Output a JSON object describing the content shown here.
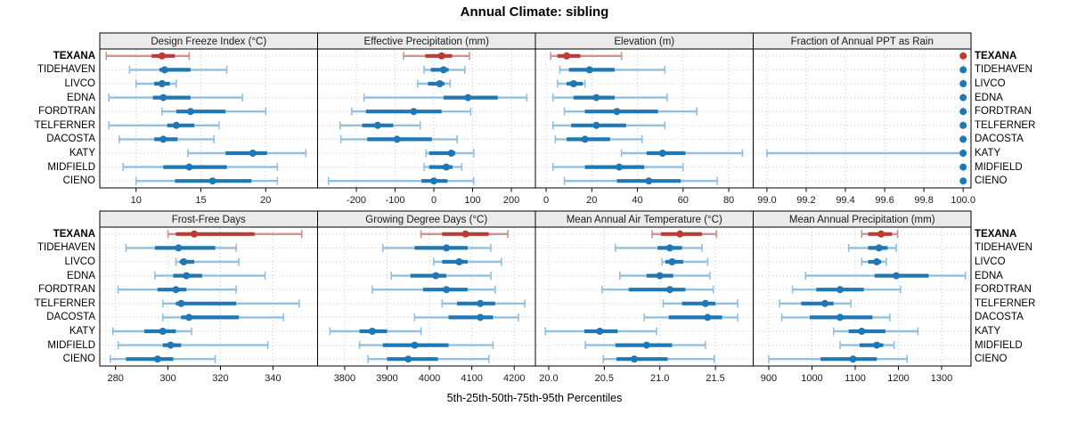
{
  "title": "Annual Climate: sibling",
  "caption": "5th-25th-50th-75th-95th Percentiles",
  "locations": [
    "TEXANA",
    "TIDEHAVEN",
    "LIVCO",
    "EDNA",
    "FORDTRAN",
    "TELFERNER",
    "DACOSTA",
    "KATY",
    "MIDFIELD",
    "CIENO"
  ],
  "highlight_location": "TEXANA",
  "percentile_levels": [
    5,
    25,
    50,
    75,
    95
  ],
  "colors": {
    "normal": "#1f77b4",
    "normal_light": "#92c0de",
    "highlight": "#be3a34",
    "highlight_light": "#d4918c",
    "grid": "#c9c9c9",
    "header_bg": "#ebebeb",
    "border": "#000000",
    "text": "#1a1a1a"
  },
  "chart_data": [
    {
      "type": "percentile_dot_whisker",
      "title": "Design Freeze Index (°C)",
      "xlim": [
        7.2,
        24.0
      ],
      "ticks": [
        10,
        15,
        20
      ],
      "tick_labels": [
        "10",
        "15",
        "20"
      ],
      "values": [
        [
          7.7,
          11.2,
          12.0,
          13.0,
          14.1
        ],
        [
          9.5,
          11.8,
          12.2,
          14.2,
          17.0
        ],
        [
          10.0,
          11.4,
          12.0,
          12.6,
          13.1
        ],
        [
          7.9,
          11.3,
          12.1,
          14.2,
          18.2
        ],
        [
          12.0,
          13.1,
          14.2,
          16.9,
          20.0
        ],
        [
          7.9,
          12.4,
          13.1,
          14.5,
          16.4
        ],
        [
          8.7,
          11.4,
          12.1,
          13.2,
          16.0
        ],
        [
          14.0,
          16.9,
          19.0,
          20.1,
          23.1
        ],
        [
          9.0,
          12.1,
          14.1,
          17.0,
          20.9
        ],
        [
          10.0,
          13.0,
          15.9,
          18.9,
          20.9
        ]
      ]
    },
    {
      "type": "percentile_dot_whisker",
      "title": "Effective Precipitation (mm)",
      "xlim": [
        -300,
        262
      ],
      "ticks": [
        -200,
        -100,
        0,
        100,
        200
      ],
      "tick_labels": [
        "-200",
        "-100",
        "0",
        "100",
        "200"
      ],
      "values": [
        [
          -78,
          -22,
          20,
          47,
          92
        ],
        [
          -25,
          -8,
          25,
          38,
          80
        ],
        [
          -42,
          -15,
          15,
          27,
          42
        ],
        [
          -180,
          25,
          88,
          165,
          240
        ],
        [
          -212,
          -175,
          -52,
          20,
          95
        ],
        [
          -242,
          -185,
          -145,
          -105,
          -35
        ],
        [
          -240,
          -172,
          -95,
          -5,
          60
        ],
        [
          -20,
          -12,
          45,
          55,
          103
        ],
        [
          -25,
          -12,
          32,
          48,
          72
        ],
        [
          -272,
          -32,
          0,
          35,
          103
        ]
      ]
    },
    {
      "type": "percentile_dot_whisker",
      "title": "Elevation (m)",
      "xlim": [
        -4.7,
        90.7
      ],
      "ticks": [
        0,
        20,
        40,
        60,
        80
      ],
      "tick_labels": [
        "0",
        "20",
        "40",
        "60",
        "80"
      ],
      "values": [
        [
          2,
          5,
          9,
          15,
          33
        ],
        [
          6,
          10,
          19,
          30,
          52
        ],
        [
          5,
          9,
          12,
          16,
          17
        ],
        [
          3,
          12,
          22,
          30,
          53
        ],
        [
          8,
          17,
          31,
          49,
          66
        ],
        [
          3,
          11,
          22,
          35,
          52
        ],
        [
          4,
          9,
          17,
          28,
          42
        ],
        [
          33,
          44,
          51,
          61,
          86
        ],
        [
          3,
          17,
          32,
          43,
          60
        ],
        [
          8,
          31,
          45,
          59,
          75
        ]
      ]
    },
    {
      "type": "percentile_dot_whisker",
      "title": "Fraction of Annual PPT as Rain",
      "xlim": [
        98.93,
        100.04
      ],
      "ticks": [
        99.0,
        99.2,
        99.4,
        99.6,
        99.8,
        100.0
      ],
      "tick_labels": [
        "99.0",
        "99.2",
        "99.4",
        "99.6",
        "99.8",
        "100.0"
      ],
      "values": [
        [
          100,
          100,
          100,
          100,
          100
        ],
        [
          100,
          100,
          100,
          100,
          100
        ],
        [
          100,
          100,
          100,
          100,
          100
        ],
        [
          100,
          100,
          100,
          100,
          100
        ],
        [
          100,
          100,
          100,
          100,
          100
        ],
        [
          100,
          100,
          100,
          100,
          100
        ],
        [
          100,
          100,
          100,
          100,
          100
        ],
        [
          99.0,
          100,
          100,
          100,
          100
        ],
        [
          100,
          100,
          100,
          100,
          100
        ],
        [
          100,
          100,
          100,
          100,
          100
        ]
      ]
    },
    {
      "type": "percentile_dot_whisker",
      "title": "Frost-Free Days",
      "xlim": [
        274,
        357
      ],
      "ticks": [
        280,
        300,
        320,
        340
      ],
      "tick_labels": [
        "280",
        "300",
        "320",
        "340"
      ],
      "values": [
        [
          300,
          303,
          310,
          333,
          351
        ],
        [
          284,
          295,
          304,
          318,
          326
        ],
        [
          303,
          304.5,
          306,
          310,
          327
        ],
        [
          295,
          302,
          307,
          313,
          337
        ],
        [
          281,
          296,
          303,
          307,
          326
        ],
        [
          298,
          303,
          305,
          326,
          350
        ],
        [
          298,
          305,
          308,
          327,
          344
        ],
        [
          279,
          291,
          298,
          303,
          309
        ],
        [
          281,
          298,
          301,
          305,
          338
        ],
        [
          278,
          284,
          296,
          302,
          318
        ]
      ]
    },
    {
      "type": "percentile_dot_whisker",
      "title": "Growing Degree Days (°C)",
      "xlim": [
        3736,
        4250
      ],
      "ticks": [
        3800,
        3900,
        4000,
        4100,
        4200
      ],
      "tick_labels": [
        "3800",
        "3900",
        "4000",
        "4100",
        "4200"
      ],
      "values": [
        [
          3980,
          4030,
          4085,
          4140,
          4185
        ],
        [
          3890,
          3965,
          4040,
          4090,
          4145
        ],
        [
          4010,
          4030,
          4070,
          4090,
          4170
        ],
        [
          3910,
          3955,
          4015,
          4040,
          4145
        ],
        [
          3865,
          3985,
          4040,
          4090,
          4155
        ],
        [
          4030,
          4065,
          4120,
          4155,
          4225
        ],
        [
          3965,
          4045,
          4120,
          4150,
          4210
        ],
        [
          3765,
          3835,
          3865,
          3900,
          3980
        ],
        [
          3835,
          3890,
          3965,
          4045,
          4150
        ],
        [
          3855,
          3900,
          3950,
          4020,
          4140
        ]
      ]
    },
    {
      "type": "percentile_dot_whisker",
      "title": "Mean Annual Air Temperature (°C)",
      "xlim": [
        19.88,
        21.84
      ],
      "ticks": [
        20.0,
        20.5,
        21.0,
        21.5
      ],
      "tick_labels": [
        "20.0",
        "20.5",
        "21.0",
        "21.5"
      ],
      "values": [
        [
          20.93,
          21.01,
          21.18,
          21.38,
          21.51
        ],
        [
          20.6,
          20.98,
          21.09,
          21.2,
          21.38
        ],
        [
          21.02,
          21.05,
          21.11,
          21.21,
          21.43
        ],
        [
          20.64,
          20.88,
          21.0,
          21.12,
          21.45
        ],
        [
          20.48,
          20.72,
          21.09,
          21.23,
          21.48
        ],
        [
          21.03,
          21.2,
          21.41,
          21.5,
          21.7
        ],
        [
          20.86,
          21.08,
          21.43,
          21.56,
          21.7
        ],
        [
          19.97,
          20.32,
          20.46,
          20.62,
          20.97
        ],
        [
          20.33,
          20.6,
          20.88,
          21.11,
          21.41
        ],
        [
          20.49,
          20.61,
          20.77,
          21.07,
          21.49
        ]
      ]
    },
    {
      "type": "percentile_dot_whisker",
      "title": "Mean Annual Precipitation (mm)",
      "xlim": [
        864,
        1368
      ],
      "ticks": [
        900,
        1000,
        1100,
        1200,
        1300
      ],
      "tick_labels": [
        "900",
        "1000",
        "1100",
        "1200",
        "1300"
      ],
      "values": [
        [
          1115,
          1130,
          1160,
          1185,
          1198
        ],
        [
          1085,
          1130,
          1155,
          1175,
          1195
        ],
        [
          1115,
          1130,
          1150,
          1160,
          1172
        ],
        [
          985,
          1145,
          1195,
          1270,
          1355
        ],
        [
          955,
          1010,
          1065,
          1120,
          1205
        ],
        [
          925,
          975,
          1030,
          1050,
          1090
        ],
        [
          930,
          995,
          1065,
          1140,
          1180
        ],
        [
          1050,
          1085,
          1115,
          1170,
          1245
        ],
        [
          1065,
          1110,
          1150,
          1165,
          1190
        ],
        [
          900,
          1020,
          1095,
          1150,
          1220
        ]
      ]
    }
  ]
}
